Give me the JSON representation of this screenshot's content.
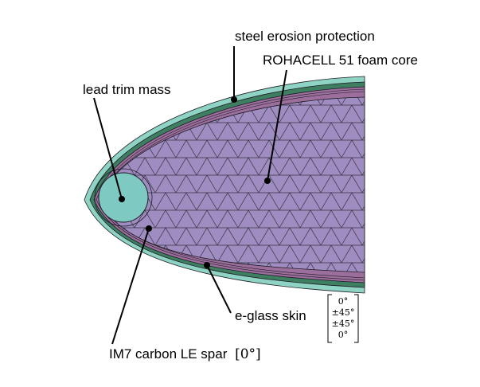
{
  "labels": {
    "steel": "steel erosion protection",
    "foam": "ROHACELL 51 foam core",
    "lead": "lead trim mass",
    "skin": "e-glass skin",
    "spar_text": "IM7 carbon LE spar",
    "spar_angle": "[0°]"
  },
  "skin_layup": [
    "0°",
    "±45°",
    "±45°",
    "0°"
  ],
  "colors": {
    "steel": "#8fd3c4",
    "skin_green": "#3e7f62",
    "spar": "#9c6e9c",
    "foam": "#9f8dc1",
    "lead": "#7fc9c3",
    "mesh_line": "#1c1c24"
  }
}
